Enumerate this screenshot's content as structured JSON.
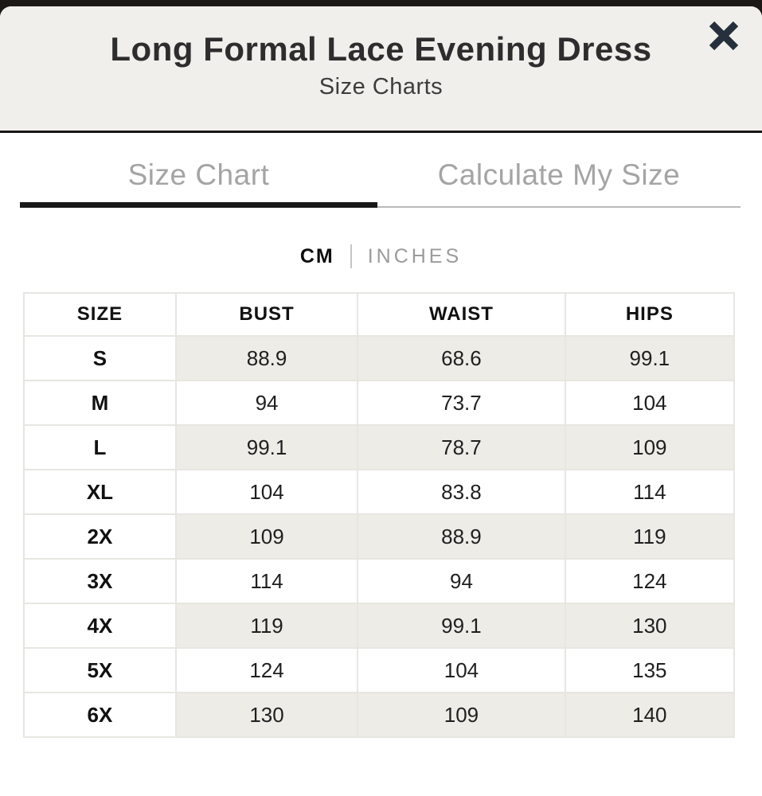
{
  "header": {
    "title": "Long Formal Lace Evening Dress",
    "subtitle": "Size Charts"
  },
  "icons": {
    "close": "✕"
  },
  "tabs": [
    {
      "label": "Size Chart",
      "active": true
    },
    {
      "label": "Calculate My Size",
      "active": false
    }
  ],
  "units": {
    "selected": "CM",
    "other": "INCHES"
  },
  "size_table": {
    "columns": [
      "SIZE",
      "BUST",
      "WAIST",
      "HIPS"
    ],
    "rows": [
      [
        "S",
        "88.9",
        "68.6",
        "99.1"
      ],
      [
        "M",
        "94",
        "73.7",
        "104"
      ],
      [
        "L",
        "99.1",
        "78.7",
        "109"
      ],
      [
        "XL",
        "104",
        "83.8",
        "114"
      ],
      [
        "2X",
        "109",
        "88.9",
        "119"
      ],
      [
        "3X",
        "114",
        "94",
        "124"
      ],
      [
        "4X",
        "119",
        "99.1",
        "130"
      ],
      [
        "5X",
        "124",
        "104",
        "135"
      ],
      [
        "6X",
        "130",
        "109",
        "140"
      ]
    ]
  },
  "colors": {
    "header_bg": "#f0efeb",
    "active_underline": "#191919",
    "inactive_text": "#a4a4a4",
    "row_shade": "#edece7",
    "close_icon": "#25303c",
    "table_border": "#e7e6e1",
    "backdrop": "#1b1815"
  }
}
